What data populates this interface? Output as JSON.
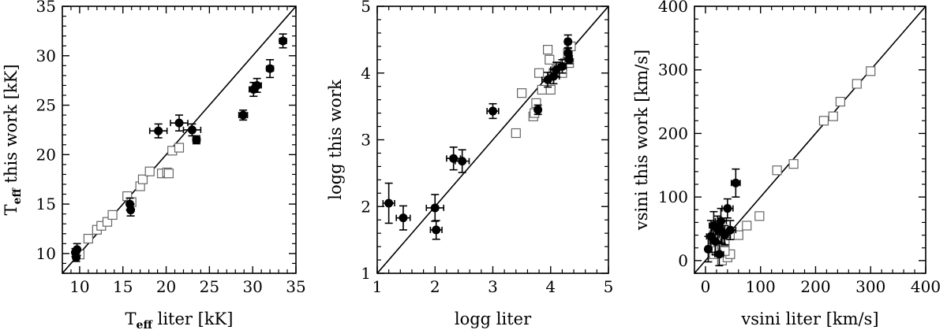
{
  "chart_data": [
    {
      "type": "scatter",
      "title": "",
      "xlabel": {
        "main": "T",
        "sub": "eff",
        "rest": " liter [kK]"
      },
      "ylabel": {
        "main": "T",
        "sub": "eff",
        "rest": " this work [kK]"
      },
      "xlim": [
        8,
        35
      ],
      "ylim": [
        8,
        35
      ],
      "xticks": [
        10,
        15,
        20,
        25,
        30,
        35
      ],
      "yticks": [
        10,
        15,
        20,
        25,
        30,
        35
      ],
      "tick_labels_x": [
        "10",
        "15",
        "20",
        "25",
        "30",
        "35"
      ],
      "tick_labels_y": [
        "10",
        "15",
        "20",
        "25",
        "30",
        "35"
      ],
      "identity_line": true,
      "series": [
        {
          "marker": "open-square",
          "points": [
            [
              10.0,
              9.9
            ],
            [
              11.0,
              11.5
            ],
            [
              12.0,
              12.4
            ],
            [
              12.5,
              12.8
            ],
            [
              13.2,
              13.2
            ],
            [
              13.8,
              13.9
            ],
            [
              15.5,
              15.8
            ],
            [
              16.0,
              15.2
            ],
            [
              17.0,
              16.8
            ],
            [
              17.3,
              17.5
            ],
            [
              18.1,
              18.3
            ],
            [
              19.5,
              18.1
            ],
            [
              20.1,
              18.2
            ],
            [
              20.3,
              18.1
            ],
            [
              20.7,
              20.4
            ],
            [
              21.5,
              20.7
            ]
          ]
        },
        {
          "marker": "filled-circle",
          "errorbars": true,
          "points": [
            {
              "x": 9.5,
              "y": 10.1,
              "xerr": 0.3,
              "yerr": 0.4
            },
            {
              "x": 9.7,
              "y": 10.4,
              "xerr": 0.3,
              "yerr": 0.6
            },
            {
              "x": 9.6,
              "y": 9.6,
              "xerr": 0.3,
              "yerr": 0.4
            },
            {
              "x": 15.8,
              "y": 15.0,
              "xerr": 0.3,
              "yerr": 0.6
            },
            {
              "x": 15.9,
              "y": 14.4,
              "xerr": 0.3,
              "yerr": 0.6
            },
            {
              "x": 19.1,
              "y": 22.4,
              "xerr": 1.0,
              "yerr": 0.7
            },
            {
              "x": 21.5,
              "y": 23.2,
              "xerr": 1.0,
              "yerr": 0.8
            },
            {
              "x": 23.0,
              "y": 22.5,
              "xerr": 1.0,
              "yerr": 0.6
            },
            {
              "x": 23.5,
              "y": 21.5,
              "xerr": 0.4,
              "yerr": 0.4
            },
            {
              "x": 28.9,
              "y": 24.0,
              "xerr": 0.5,
              "yerr": 0.5
            },
            {
              "x": 30.1,
              "y": 26.6,
              "xerr": 0.5,
              "yerr": 0.7
            },
            {
              "x": 30.5,
              "y": 27.0,
              "xerr": 0.5,
              "yerr": 0.7
            },
            {
              "x": 32.0,
              "y": 28.7,
              "xerr": 0.4,
              "yerr": 0.9
            },
            {
              "x": 33.5,
              "y": 31.5,
              "xerr": 0.4,
              "yerr": 0.7
            }
          ]
        }
      ]
    },
    {
      "type": "scatter",
      "title": "",
      "xlabel": {
        "main": "logg liter",
        "sub": "",
        "rest": ""
      },
      "ylabel": {
        "main": "logg this work",
        "sub": "",
        "rest": ""
      },
      "xlim": [
        1,
        5
      ],
      "ylim": [
        1,
        5
      ],
      "xticks": [
        1,
        2,
        3,
        4,
        5
      ],
      "yticks": [
        1,
        2,
        3,
        4,
        5
      ],
      "tick_labels_x": [
        "1",
        "2",
        "3",
        "4",
        "5"
      ],
      "tick_labels_y": [
        "1",
        "2",
        "3",
        "4",
        "5"
      ],
      "identity_line": true,
      "series": [
        {
          "marker": "open-square",
          "points": [
            [
              3.4,
              3.1
            ],
            [
              3.5,
              3.7
            ],
            [
              3.7,
              3.35
            ],
            [
              3.72,
              3.4
            ],
            [
              3.75,
              3.55
            ],
            [
              3.8,
              4.0
            ],
            [
              3.85,
              3.75
            ],
            [
              3.95,
              4.35
            ],
            [
              3.98,
              4.2
            ],
            [
              4.0,
              3.75
            ],
            [
              4.05,
              4.0
            ],
            [
              4.1,
              4.05
            ],
            [
              4.15,
              4.1
            ],
            [
              4.2,
              4.0
            ],
            [
              4.25,
              4.15
            ],
            [
              4.3,
              4.3
            ],
            [
              4.35,
              4.4
            ],
            [
              4.32,
              4.15
            ]
          ]
        },
        {
          "marker": "filled-circle",
          "errorbars": true,
          "points": [
            {
              "x": 1.2,
              "y": 2.05,
              "xerr": 0.1,
              "yerr": 0.3
            },
            {
              "x": 1.45,
              "y": 1.83,
              "xerr": 0.12,
              "yerr": 0.18
            },
            {
              "x": 2.0,
              "y": 1.98,
              "xerr": 0.15,
              "yerr": 0.2
            },
            {
              "x": 2.02,
              "y": 1.65,
              "xerr": 0.1,
              "yerr": 0.14
            },
            {
              "x": 2.32,
              "y": 2.72,
              "xerr": 0.12,
              "yerr": 0.17
            },
            {
              "x": 2.47,
              "y": 2.68,
              "xerr": 0.12,
              "yerr": 0.17
            },
            {
              "x": 3.0,
              "y": 3.43,
              "xerr": 0.1,
              "yerr": 0.11
            },
            {
              "x": 3.78,
              "y": 3.45,
              "xerr": 0.05,
              "yerr": 0.07
            },
            {
              "x": 3.95,
              "y": 3.9,
              "xerr": 0.1,
              "yerr": 0.11
            },
            {
              "x": 4.05,
              "y": 3.95,
              "xerr": 0.1,
              "yerr": 0.11
            },
            {
              "x": 4.1,
              "y": 4.05,
              "xerr": 0.1,
              "yerr": 0.11
            },
            {
              "x": 4.2,
              "y": 4.1,
              "xerr": 0.07,
              "yerr": 0.1
            },
            {
              "x": 4.3,
              "y": 4.47,
              "xerr": 0.05,
              "yerr": 0.1
            },
            {
              "x": 4.3,
              "y": 4.3,
              "xerr": 0.05,
              "yerr": 0.08
            },
            {
              "x": 4.32,
              "y": 4.2,
              "xerr": 0.05,
              "yerr": 0.06
            }
          ]
        }
      ]
    },
    {
      "type": "scatter",
      "title": "",
      "xlabel": {
        "main": "vsini liter [km/s]",
        "sub": "",
        "rest": ""
      },
      "ylabel": {
        "main": "vsini this work [km/s]",
        "sub": "",
        "rest": ""
      },
      "xlim": [
        -20,
        400
      ],
      "ylim": [
        -20,
        400
      ],
      "xticks": [
        0,
        100,
        200,
        300,
        400
      ],
      "yticks": [
        0,
        100,
        200,
        300,
        400
      ],
      "tick_labels_x": [
        "0",
        "100",
        "200",
        "300",
        "400"
      ],
      "tick_labels_y": [
        "0",
        "100",
        "200",
        "300",
        "400"
      ],
      "identity_line": true,
      "series": [
        {
          "marker": "open-square",
          "points": [
            [
              15,
              10
            ],
            [
              20,
              15
            ],
            [
              25,
              20
            ],
            [
              30,
              25
            ],
            [
              35,
              30
            ],
            [
              30,
              0
            ],
            [
              40,
              5
            ],
            [
              45,
              10
            ],
            [
              25,
              30
            ],
            [
              20,
              35
            ],
            [
              35,
              15
            ],
            [
              15,
              40
            ],
            [
              60,
              40
            ],
            [
              75,
              55
            ],
            [
              98,
              70
            ],
            [
              130,
              142
            ],
            [
              160,
              152
            ],
            [
              215,
              220
            ],
            [
              232,
              227
            ],
            [
              245,
              250
            ],
            [
              275,
              278
            ],
            [
              300,
              298
            ]
          ]
        },
        {
          "marker": "filled-circle",
          "errorbars": true,
          "points": [
            {
              "x": 5,
              "y": 18,
              "xerr": 5,
              "yerr": 20
            },
            {
              "x": 10,
              "y": 38,
              "xerr": 8,
              "yerr": 25
            },
            {
              "x": 15,
              "y": 55,
              "xerr": 8,
              "yerr": 22
            },
            {
              "x": 18,
              "y": 30,
              "xerr": 10,
              "yerr": 20
            },
            {
              "x": 22,
              "y": 50,
              "xerr": 10,
              "yerr": 20
            },
            {
              "x": 25,
              "y": 10,
              "xerr": 8,
              "yerr": 18
            },
            {
              "x": 28,
              "y": 62,
              "xerr": 10,
              "yerr": 20
            },
            {
              "x": 30,
              "y": 45,
              "xerr": 10,
              "yerr": 18
            },
            {
              "x": 35,
              "y": 40,
              "xerr": 10,
              "yerr": 15
            },
            {
              "x": 40,
              "y": 82,
              "xerr": 10,
              "yerr": 15
            },
            {
              "x": 45,
              "y": 48,
              "xerr": 10,
              "yerr": 15
            },
            {
              "x": 55,
              "y": 122,
              "xerr": 8,
              "yerr": 22
            }
          ]
        }
      ]
    }
  ]
}
